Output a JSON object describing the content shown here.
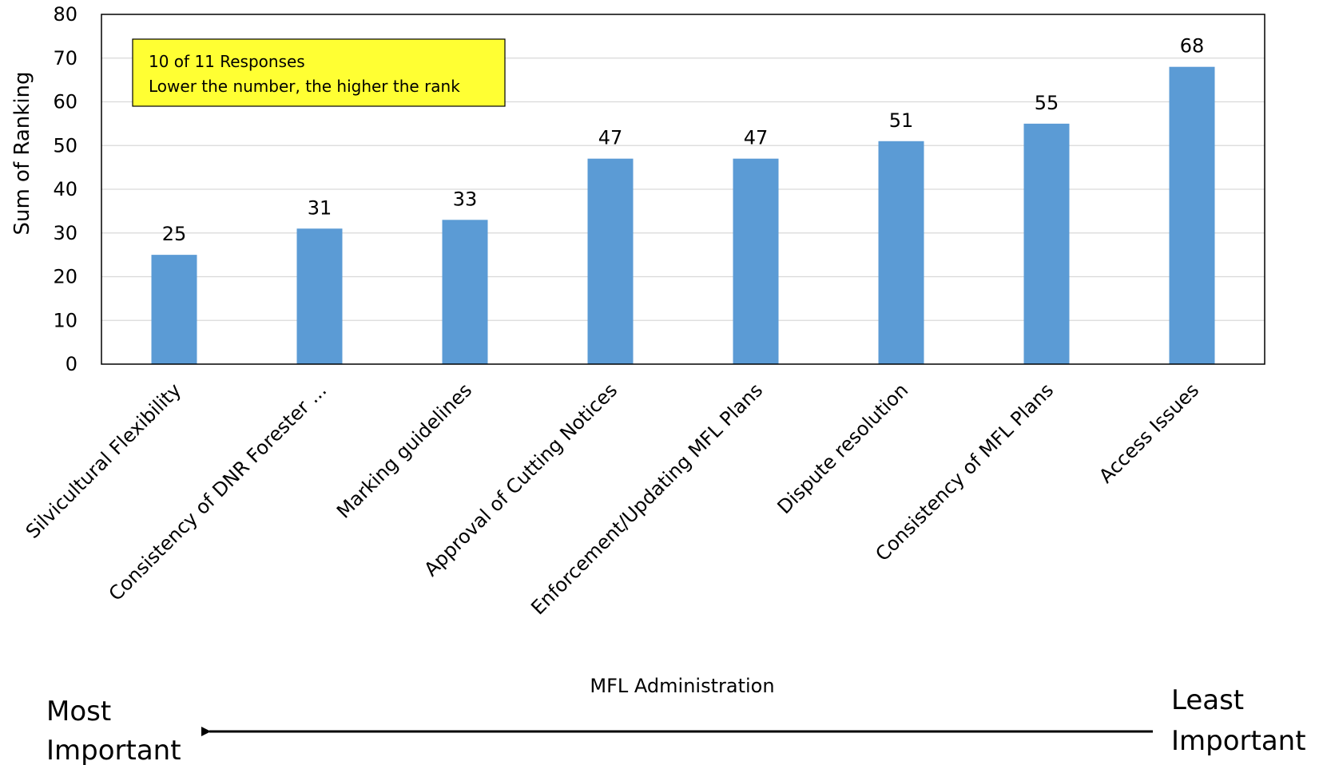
{
  "chart_data": {
    "type": "bar",
    "categories": [
      "Silvicultural Flexibility",
      "Consistency of DNR Forester ...",
      "Marking guidelines",
      "Approval of Cutting Notices",
      "Enforcement/Updating MFL Plans",
      "Dispute resolution",
      "Consistency of MFL Plans",
      "Access Issues"
    ],
    "values": [
      25,
      31,
      33,
      47,
      47,
      51,
      55,
      68
    ],
    "data_labels": [
      "25",
      "31",
      "33",
      "47",
      "47",
      "51",
      "55",
      "68"
    ],
    "xlabel": "MFL Administration",
    "ylabel": "Sum of Ranking",
    "ylim": [
      0,
      80
    ],
    "yticks": [
      0,
      10,
      20,
      30,
      40,
      50,
      60,
      70,
      80
    ],
    "grid": true,
    "bar_color": "#5B9BD5",
    "annotation": {
      "line1": "10 of 11 Responses",
      "line2": "Lower the number, the higher the rank",
      "background": "#FFFF33"
    }
  },
  "importance_scale": {
    "left_line1": "Most",
    "left_line2": "Important",
    "right_line1": "Least",
    "right_line2": "Important"
  }
}
